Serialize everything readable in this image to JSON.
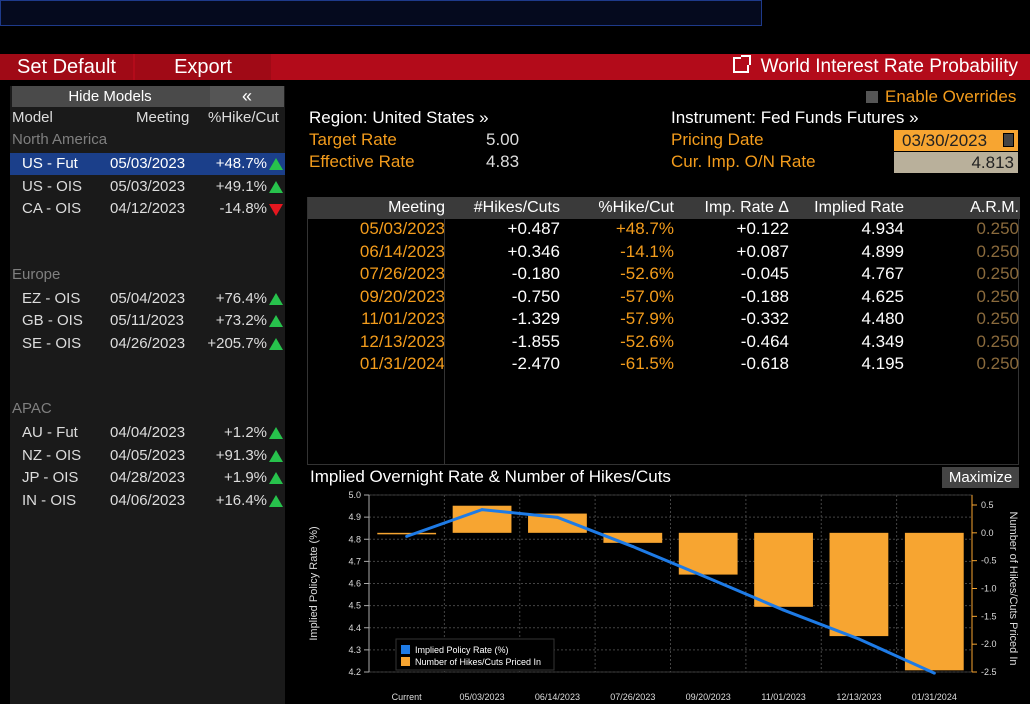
{
  "toolbar": {
    "set_default": "Set Default",
    "export": "Export",
    "title": "World Interest Rate Probability"
  },
  "left_panel": {
    "hide_models": "Hide Models",
    "collapse_glyph": "«",
    "headers": {
      "model": "Model",
      "meeting": "Meeting",
      "hike_cut": "%Hike/Cut"
    },
    "regions": [
      {
        "name": "North America",
        "rows": [
          {
            "model": "US - Fut",
            "meeting": "05/03/2023",
            "pct": "+48.7%",
            "dir": "up",
            "selected": true
          },
          {
            "model": "US - OIS",
            "meeting": "05/03/2023",
            "pct": "+49.1%",
            "dir": "up"
          },
          {
            "model": "CA - OIS",
            "meeting": "04/12/2023",
            "pct": "-14.8%",
            "dir": "down"
          }
        ]
      },
      {
        "name": "Europe",
        "rows": [
          {
            "model": "EZ - OIS",
            "meeting": "05/04/2023",
            "pct": "+76.4%",
            "dir": "up"
          },
          {
            "model": "GB - OIS",
            "meeting": "05/11/2023",
            "pct": "+73.2%",
            "dir": "up"
          },
          {
            "model": "SE - OIS",
            "meeting": "04/26/2023",
            "pct": "+205.7%",
            "dir": "up"
          }
        ]
      },
      {
        "name": "APAC",
        "rows": [
          {
            "model": "AU - Fut",
            "meeting": "04/04/2023",
            "pct": "+1.2%",
            "dir": "up"
          },
          {
            "model": "NZ - OIS",
            "meeting": "04/05/2023",
            "pct": "+91.3%",
            "dir": "up"
          },
          {
            "model": "JP - OIS",
            "meeting": "04/28/2023",
            "pct": "+1.9%",
            "dir": "up"
          },
          {
            "model": "IN - OIS",
            "meeting": "04/06/2023",
            "pct": "+16.4%",
            "dir": "up"
          }
        ]
      }
    ]
  },
  "info": {
    "enable_overrides": "Enable Overrides",
    "region": "Region: United States »",
    "instrument": "Instrument: Fed Funds Futures »",
    "target_rate_label": "Target Rate",
    "target_rate": "5.00",
    "effective_rate_label": "Effective Rate",
    "effective_rate": "4.83",
    "pricing_date_label": "Pricing Date",
    "pricing_date": "03/30/2023",
    "cur_imp_label": "Cur. Imp. O/N Rate",
    "cur_imp": "4.813"
  },
  "table": {
    "headers": [
      "Meeting",
      "#Hikes/Cuts",
      "%Hike/Cut",
      "Imp. Rate Δ",
      "Implied Rate",
      "A.R.M."
    ],
    "rows": [
      [
        "05/03/2023",
        "+0.487",
        "+48.7%",
        "+0.122",
        "4.934",
        "0.250"
      ],
      [
        "06/14/2023",
        "+0.346",
        "-14.1%",
        "+0.087",
        "4.899",
        "0.250"
      ],
      [
        "07/26/2023",
        "-0.180",
        "-52.6%",
        "-0.045",
        "4.767",
        "0.250"
      ],
      [
        "09/20/2023",
        "-0.750",
        "-57.0%",
        "-0.188",
        "4.625",
        "0.250"
      ],
      [
        "11/01/2023",
        "-1.329",
        "-57.9%",
        "-0.332",
        "4.480",
        "0.250"
      ],
      [
        "12/13/2023",
        "-1.855",
        "-52.6%",
        "-0.464",
        "4.349",
        "0.250"
      ],
      [
        "01/31/2024",
        "-2.470",
        "-61.5%",
        "-0.618",
        "4.195",
        "0.250"
      ]
    ]
  },
  "chart_panel": {
    "title": "Implied Overnight Rate & Number of Hikes/Cuts",
    "maximize": "Maximize"
  },
  "chart_data": {
    "type": "bar",
    "categories": [
      "Current",
      "05/03/2023",
      "06/14/2023",
      "07/26/2023",
      "09/20/2023",
      "11/01/2023",
      "12/13/2023",
      "01/31/2024"
    ],
    "series": [
      {
        "name": "Implied Policy Rate (%)",
        "kind": "line",
        "axis": "left",
        "color": "#1e7be6",
        "values": [
          4.813,
          4.934,
          4.899,
          4.767,
          4.625,
          4.48,
          4.349,
          4.195
        ]
      },
      {
        "name": "Number of Hikes/Cuts Priced In",
        "kind": "bar",
        "axis": "right",
        "color": "#f7a531",
        "values": [
          0.0,
          0.487,
          0.346,
          -0.18,
          -0.75,
          -1.329,
          -1.855,
          -2.47
        ]
      }
    ],
    "ylabel": "Implied Policy Rate (%)",
    "y2label": "Number of Hikes/Cuts Priced In",
    "ylim": [
      4.2,
      5.0
    ],
    "yticks": [
      "4.2",
      "4.3",
      "4.4",
      "4.5",
      "4.6",
      "4.7",
      "4.8",
      "4.9",
      "5.0"
    ],
    "y2lim": [
      -2.5,
      0.5
    ],
    "y2ticks": [
      "0.5",
      "0.0",
      "-0.5",
      "-1.0",
      "-1.5",
      "-2.0",
      "-2.5"
    ],
    "grid": true,
    "legend": "bottom-left"
  }
}
